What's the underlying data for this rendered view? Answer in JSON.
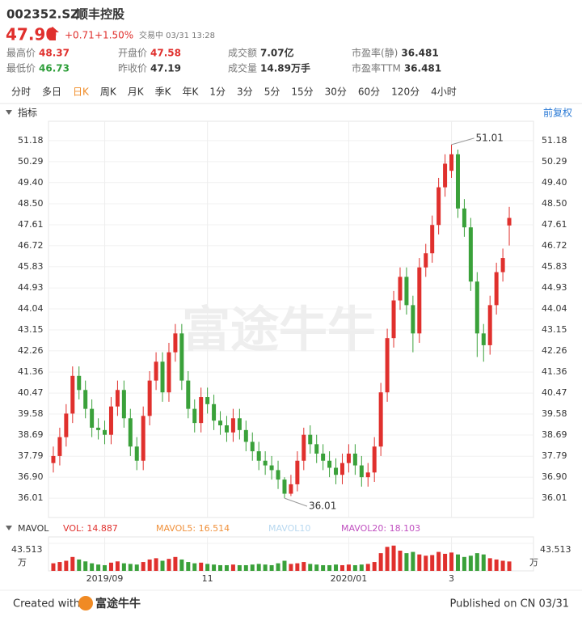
{
  "header": {
    "code": "002352.SZ",
    "name": "顺丰控股",
    "price": "47.90",
    "change": "+0.71",
    "change_pct": "+1.50%",
    "status": "交易中 03/31 13:28",
    "stats": [
      {
        "label": "最高价",
        "value": "48.37",
        "color": "#e0302d"
      },
      {
        "label": "开盘价",
        "value": "47.58",
        "color": "#e0302d"
      },
      {
        "label": "成交额",
        "value": "7.07亿",
        "color": "#333333"
      },
      {
        "label": "市盈率(静)",
        "value": "36.481",
        "color": "#333333"
      },
      {
        "label": "最低价",
        "value": "46.73",
        "color": "#2e9e3a"
      },
      {
        "label": "昨收价",
        "value": "47.19",
        "color": "#333333"
      },
      {
        "label": "成交量",
        "value": "14.89万手",
        "color": "#333333"
      },
      {
        "label": "市盈率TTM",
        "value": "36.481",
        "color": "#333333"
      }
    ]
  },
  "tabs": {
    "items": [
      "分时",
      "多日",
      "日K",
      "周K",
      "月K",
      "季K",
      "年K",
      "1分",
      "3分",
      "5分",
      "15分",
      "30分",
      "60分",
      "120分",
      "4小时"
    ],
    "active": 2
  },
  "indicator": {
    "label": "指标",
    "adjust": "前复权"
  },
  "watermark": "富途牛牛",
  "chart_data": {
    "type": "candlestick",
    "up_color": "#e0302d",
    "down_color": "#3aa13a",
    "grid": true,
    "categories": [
      null,
      null,
      null,
      null,
      null,
      null,
      null,
      null,
      "2019/09",
      null,
      null,
      null,
      null,
      null,
      null,
      null,
      null,
      null,
      null,
      null,
      null,
      null,
      null,
      null,
      "11",
      null,
      null,
      null,
      null,
      null,
      null,
      null,
      null,
      null,
      null,
      null,
      null,
      null,
      null,
      null,
      null,
      null,
      null,
      null,
      null,
      null,
      "2020/01",
      null,
      null,
      null,
      null,
      null,
      null,
      null,
      null,
      null,
      null,
      null,
      null,
      null,
      null,
      null,
      "3",
      null,
      null,
      null,
      null,
      null,
      null,
      null,
      null,
      null
    ],
    "open": [
      37.5,
      37.8,
      38.6,
      39.6,
      41.2,
      40.6,
      39.8,
      39.0,
      38.9,
      38.7,
      39.9,
      40.6,
      39.4,
      38.2,
      37.6,
      39.5,
      41.0,
      41.8,
      40.5,
      42.2,
      43.0,
      41.0,
      39.8,
      39.2,
      40.3,
      40.0,
      39.3,
      39.1,
      38.8,
      39.4,
      38.9,
      38.4,
      38.0,
      37.6,
      37.4,
      37.2,
      36.8,
      36.2,
      36.6,
      37.6,
      38.7,
      38.3,
      37.9,
      37.6,
      37.3,
      37.0,
      37.5,
      37.9,
      37.4,
      36.9,
      37.1,
      38.2,
      40.5,
      42.8,
      44.4,
      45.4,
      44.2,
      43.0,
      45.8,
      46.4,
      47.6,
      49.2,
      49.9,
      50.6,
      48.3,
      47.5,
      45.2,
      43.0,
      42.5,
      44.2,
      45.6,
      47.58
    ],
    "close": [
      37.8,
      38.6,
      39.6,
      41.2,
      40.6,
      39.8,
      39.0,
      38.9,
      38.7,
      39.9,
      40.6,
      39.4,
      38.2,
      37.6,
      39.5,
      41.0,
      41.8,
      40.5,
      42.2,
      43.0,
      41.0,
      39.8,
      39.2,
      40.3,
      40.0,
      39.3,
      39.1,
      38.8,
      39.4,
      38.9,
      38.4,
      38.0,
      37.6,
      37.4,
      37.2,
      36.8,
      36.2,
      36.6,
      37.6,
      38.7,
      38.3,
      37.9,
      37.6,
      37.3,
      37.0,
      37.5,
      37.9,
      37.4,
      36.9,
      37.1,
      38.2,
      40.5,
      42.8,
      44.4,
      45.4,
      44.2,
      43.0,
      45.8,
      46.4,
      47.6,
      49.2,
      50.2,
      50.6,
      48.3,
      47.5,
      45.2,
      43.0,
      42.5,
      44.2,
      45.6,
      46.2,
      47.9
    ],
    "low": [
      37.1,
      37.4,
      38.2,
      39.2,
      40.2,
      39.4,
      38.6,
      38.5,
      38.3,
      38.3,
      39.5,
      39.0,
      37.8,
      37.2,
      37.2,
      39.1,
      40.6,
      40.1,
      40.1,
      41.8,
      40.6,
      39.4,
      38.8,
      38.8,
      39.6,
      38.9,
      38.7,
      38.4,
      38.4,
      38.5,
      38.0,
      37.6,
      37.2,
      37.0,
      36.8,
      36.4,
      36.01,
      36.1,
      36.3,
      37.2,
      37.9,
      37.5,
      37.2,
      36.9,
      36.6,
      36.6,
      37.1,
      37.0,
      36.5,
      36.5,
      36.7,
      37.8,
      40.1,
      42.4,
      44.0,
      43.8,
      42.2,
      42.6,
      45.4,
      46.0,
      47.2,
      48.8,
      49.6,
      47.9,
      47.1,
      44.8,
      42.0,
      41.8,
      42.1,
      43.8,
      45.2,
      46.73
    ],
    "high": [
      38.2,
      39.0,
      40.0,
      41.6,
      41.6,
      41.0,
      40.2,
      39.4,
      39.3,
      40.3,
      41.0,
      41.0,
      39.8,
      38.6,
      39.9,
      41.4,
      42.2,
      42.2,
      42.6,
      43.4,
      43.4,
      41.4,
      40.2,
      40.7,
      40.7,
      40.4,
      39.7,
      39.5,
      39.8,
      39.8,
      39.3,
      38.8,
      38.4,
      38.0,
      37.8,
      37.6,
      36.9,
      37.0,
      38.0,
      39.0,
      39.1,
      38.7,
      38.3,
      38.0,
      37.7,
      37.9,
      38.3,
      38.3,
      37.8,
      37.5,
      38.6,
      40.9,
      43.2,
      44.8,
      45.8,
      45.8,
      44.6,
      46.2,
      46.8,
      48.0,
      49.6,
      50.6,
      51.01,
      50.8,
      48.7,
      47.9,
      45.6,
      43.4,
      44.6,
      46.0,
      46.6,
      48.37
    ],
    "ylim": [
      35.19,
      52.0
    ],
    "yticks": [
      36.01,
      {
        "value": 36.9,
        "label": "36.90"
      },
      37.79,
      38.69,
      39.58,
      40.47,
      41.36,
      42.26,
      43.15,
      44.04,
      44.93,
      45.83,
      46.72,
      47.61,
      {
        "value": 48.5,
        "label": "48.50"
      },
      {
        "value": 49.4,
        "label": "49.40"
      },
      50.29,
      51.18
    ],
    "max_label": "51.01",
    "min_label": "36.01",
    "volume": {
      "title": "MAVOL",
      "unit": "万",
      "legend": [
        {
          "text": "VOL: 14.887",
          "color": "#e0302d"
        },
        {
          "text": "MAVOL5: 16.514",
          "color": "#f0903a"
        },
        {
          "text": "MAVOL10",
          "color": "#b8d8f0"
        },
        {
          "text": "MAVOL20: 18.103",
          "color": "#c050c0"
        }
      ],
      "values": [
        12,
        14,
        16,
        22,
        18,
        15,
        12,
        10,
        9,
        13,
        15,
        12,
        11,
        10,
        14,
        18,
        20,
        16,
        19,
        22,
        18,
        14,
        12,
        13,
        11,
        10,
        9,
        9,
        10,
        9,
        9,
        10,
        11,
        10,
        9,
        12,
        16,
        11,
        12,
        14,
        11,
        10,
        9,
        9,
        10,
        9,
        10,
        9,
        10,
        11,
        14,
        28,
        38,
        40,
        32,
        28,
        30,
        26,
        24,
        25,
        30,
        27,
        29,
        26,
        22,
        24,
        28,
        26,
        20,
        18,
        16,
        14.887
      ],
      "ylim": [
        0,
        43.513
      ],
      "yticks": [
        43.513
      ]
    }
  },
  "footer": {
    "created": "Created with",
    "brand": "富途牛牛",
    "published": "Published on CN 03/31"
  }
}
